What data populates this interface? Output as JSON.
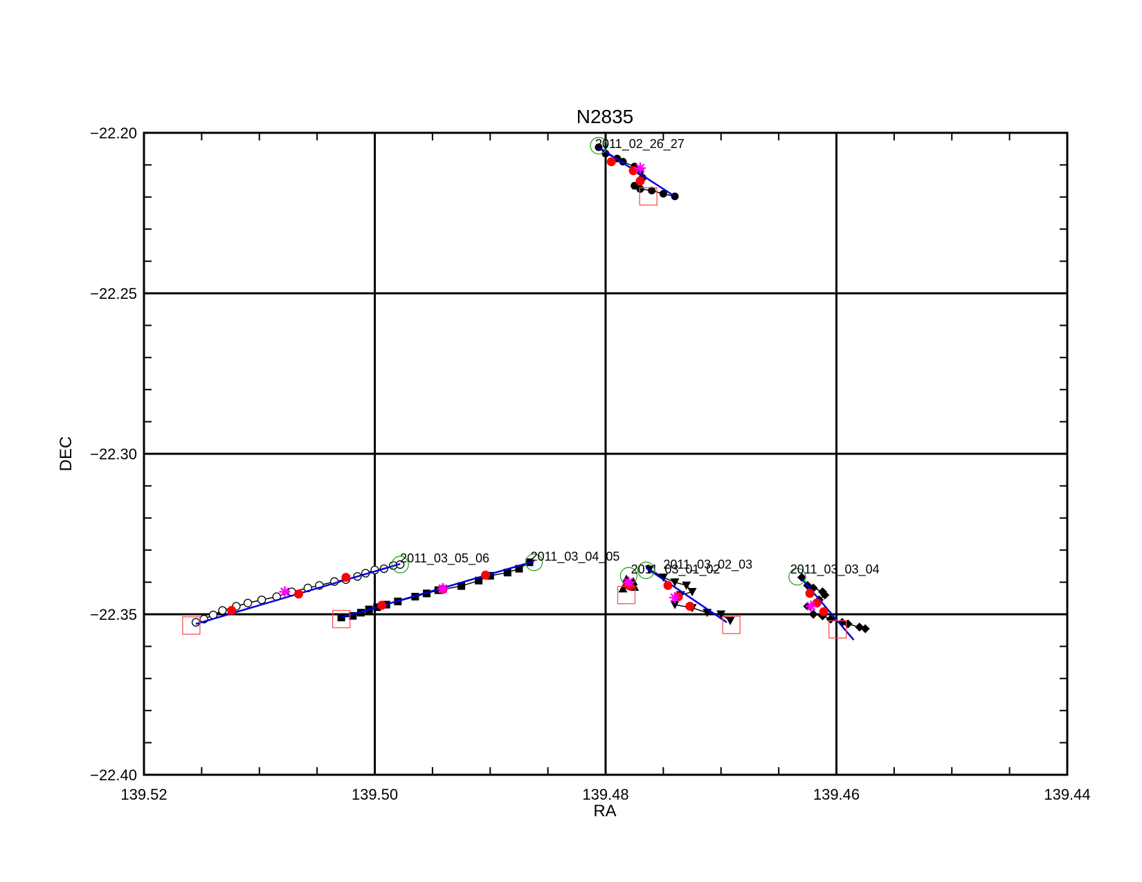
{
  "chart_data": {
    "type": "scatter",
    "title": "N2835",
    "xlabel": "RA",
    "ylabel": "DEC",
    "xlim": [
      139.52,
      139.44
    ],
    "ylim": [
      -22.4,
      -22.2
    ],
    "x_reversed": true,
    "grid": true,
    "x_major_ticks": [
      139.52,
      139.5,
      139.48,
      139.46,
      139.44
    ],
    "x_tick_labels": [
      "139.52",
      "139.50",
      "139.48",
      "139.46",
      "139.44"
    ],
    "x_minor_step": 0.005,
    "y_major_ticks": [
      -22.2,
      -22.25,
      -22.3,
      -22.35,
      -22.4
    ],
    "y_tick_labels": [
      "−22.20",
      "−22.25",
      "−22.30",
      "−22.35",
      "−22.40"
    ],
    "y_minor_step": 0.01,
    "colors": {
      "track": "#000000",
      "fit": "#0000dd",
      "marker_red": "#ff0000",
      "marker_magenta": "#ff00ff",
      "start_circle": "#2ca02c",
      "end_square": "#ff4d4d"
    },
    "series": [
      {
        "name": "2011_02_26_27",
        "marker": "filled-circle",
        "label_at": [
          139.4809,
          -22.2035
        ],
        "start": [
          139.4806,
          -22.204
        ],
        "end": [
          139.4763,
          -22.2198
        ],
        "points": [
          [
            139.4806,
            -22.2045
          ],
          [
            139.48,
            -22.2065
          ],
          [
            139.479,
            -22.208
          ],
          [
            139.4785,
            -22.209
          ],
          [
            139.4775,
            -22.2105
          ],
          [
            139.477,
            -22.212
          ],
          [
            139.4768,
            -22.214
          ],
          [
            139.4775,
            -22.2165
          ],
          [
            139.477,
            -22.2175
          ],
          [
            139.476,
            -22.218
          ],
          [
            139.475,
            -22.219
          ],
          [
            139.474,
            -22.2198
          ]
        ],
        "red_points": [
          [
            139.4795,
            -22.209
          ],
          [
            139.4776,
            -22.2118
          ],
          [
            139.477,
            -22.215
          ]
        ],
        "magenta_points": [
          [
            139.477,
            -22.211
          ]
        ],
        "fit": [
          [
            139.4806,
            -22.2045
          ],
          [
            139.474,
            -22.2198
          ]
        ]
      },
      {
        "name": "2011_03_05_06",
        "marker": "open-circle",
        "label_at": [
          139.4978,
          -22.3325
        ],
        "start": [
          139.4978,
          -22.3345
        ],
        "end": [
          139.5159,
          -22.3535
        ],
        "points": [
          [
            139.5155,
            -22.3525
          ],
          [
            139.5148,
            -22.3515
          ],
          [
            139.514,
            -22.3502
          ],
          [
            139.5132,
            -22.3488
          ],
          [
            139.512,
            -22.3475
          ],
          [
            139.511,
            -22.3465
          ],
          [
            139.5098,
            -22.3455
          ],
          [
            139.5085,
            -22.3445
          ],
          [
            139.5072,
            -22.343
          ],
          [
            139.5058,
            -22.3418
          ],
          [
            139.5048,
            -22.341
          ],
          [
            139.5035,
            -22.3398
          ],
          [
            139.5025,
            -22.3392
          ],
          [
            139.5015,
            -22.3382
          ],
          [
            139.5008,
            -22.3372
          ],
          [
            139.5,
            -22.3362
          ],
          [
            139.4992,
            -22.3358
          ],
          [
            139.4984,
            -22.3348
          ],
          [
            139.4978,
            -22.3345
          ]
        ],
        "red_points": [
          [
            139.5124,
            -22.3488
          ],
          [
            139.5066,
            -22.3437
          ],
          [
            139.5025,
            -22.3385
          ]
        ],
        "magenta_points": [
          [
            139.5078,
            -22.343
          ]
        ],
        "fit": [
          [
            139.5155,
            -22.353
          ],
          [
            139.4978,
            -22.3343
          ]
        ]
      },
      {
        "name": "2011_03_04_05",
        "marker": "filled-square",
        "label_at": [
          139.4865,
          -22.332
        ],
        "start": [
          139.4862,
          -22.3338
        ],
        "end": [
          139.5029,
          -22.3515
        ],
        "points": [
          [
            139.5029,
            -22.351
          ],
          [
            139.5019,
            -22.3505
          ],
          [
            139.5012,
            -22.3495
          ],
          [
            139.5005,
            -22.3485
          ],
          [
            139.4998,
            -22.3478
          ],
          [
            139.499,
            -22.347
          ],
          [
            139.498,
            -22.346
          ],
          [
            139.4965,
            -22.3445
          ],
          [
            139.4955,
            -22.3435
          ],
          [
            139.4945,
            -22.3425
          ],
          [
            139.4925,
            -22.3412
          ],
          [
            139.491,
            -22.3395
          ],
          [
            139.49,
            -22.338
          ],
          [
            139.4885,
            -22.337
          ],
          [
            139.4875,
            -22.3358
          ],
          [
            139.4866,
            -22.3338
          ]
        ],
        "red_points": [
          [
            139.4994,
            -22.3472
          ],
          [
            139.4941,
            -22.3422
          ],
          [
            139.4904,
            -22.3378
          ]
        ],
        "magenta_points": [
          [
            139.4941,
            -22.342
          ]
        ],
        "fit": [
          [
            139.5029,
            -22.351
          ],
          [
            139.4862,
            -22.3335
          ]
        ]
      },
      {
        "name": "2011_03_01_02",
        "marker": "filled-triangle-up",
        "label_at": [
          139.4778,
          -22.336
        ],
        "start": [
          139.478,
          -22.338
        ],
        "end": [
          139.4782,
          -22.344
        ],
        "points": [
          [
            139.4781,
            -22.3398
          ],
          [
            139.4779,
            -22.3405
          ],
          [
            139.4777,
            -22.341
          ],
          [
            139.4775,
            -22.3415
          ],
          [
            139.4785,
            -22.342
          ],
          [
            139.4782,
            -22.339
          ],
          [
            139.4776,
            -22.3398
          ]
        ],
        "red_points": [
          [
            139.4781,
            -22.3405
          ],
          [
            139.4779,
            -22.3412
          ]
        ],
        "magenta_points": [
          [
            139.478,
            -22.34
          ]
        ],
        "fit": [
          [
            139.4781,
            -22.3395
          ],
          [
            139.4778,
            -22.3418
          ]
        ]
      },
      {
        "name": "2011_03_02_03",
        "marker": "filled-triangle-down",
        "label_at": [
          139.475,
          -22.3345
        ],
        "start": [
          139.4765,
          -22.3363
        ],
        "end": [
          139.4691,
          -22.3533
        ],
        "points": [
          [
            139.4762,
            -22.336
          ],
          [
            139.475,
            -22.3385
          ],
          [
            139.474,
            -22.34
          ],
          [
            139.473,
            -22.341
          ],
          [
            139.4725,
            -22.343
          ],
          [
            139.4735,
            -22.344
          ],
          [
            139.474,
            -22.347
          ],
          [
            139.4725,
            -22.348
          ],
          [
            139.4712,
            -22.3495
          ],
          [
            139.47,
            -22.35
          ],
          [
            139.4692,
            -22.352
          ]
        ],
        "red_points": [
          [
            139.4746,
            -22.341
          ],
          [
            139.4737,
            -22.3445
          ],
          [
            139.4727,
            -22.3475
          ]
        ],
        "magenta_points": [
          [
            139.474,
            -22.3448
          ]
        ],
        "fit": [
          [
            139.4765,
            -22.3355
          ],
          [
            139.4695,
            -22.3525
          ]
        ]
      },
      {
        "name": "2011_03_03_04",
        "marker": "filled-diamond",
        "label_at": [
          139.464,
          -22.336
        ],
        "start": [
          139.4634,
          -22.3383
        ],
        "end": [
          139.4599,
          -22.3547
        ],
        "points": [
          [
            139.463,
            -22.3385
          ],
          [
            139.4625,
            -22.341
          ],
          [
            139.462,
            -22.3418
          ],
          [
            139.4612,
            -22.343
          ],
          [
            139.461,
            -22.344
          ],
          [
            139.4615,
            -22.3455
          ],
          [
            139.4625,
            -22.3475
          ],
          [
            139.462,
            -22.35
          ],
          [
            139.4612,
            -22.3505
          ],
          [
            139.4605,
            -22.3515
          ],
          [
            139.4595,
            -22.3525
          ],
          [
            139.459,
            -22.353
          ],
          [
            139.458,
            -22.354
          ],
          [
            139.4575,
            -22.3545
          ]
        ],
        "red_points": [
          [
            139.4623,
            -22.3435
          ],
          [
            139.4617,
            -22.3465
          ],
          [
            139.4611,
            -22.3492
          ]
        ],
        "magenta_points": [
          [
            139.4622,
            -22.3475
          ]
        ],
        "fit": [
          [
            139.463,
            -22.339
          ],
          [
            139.4585,
            -22.358
          ]
        ]
      }
    ]
  }
}
